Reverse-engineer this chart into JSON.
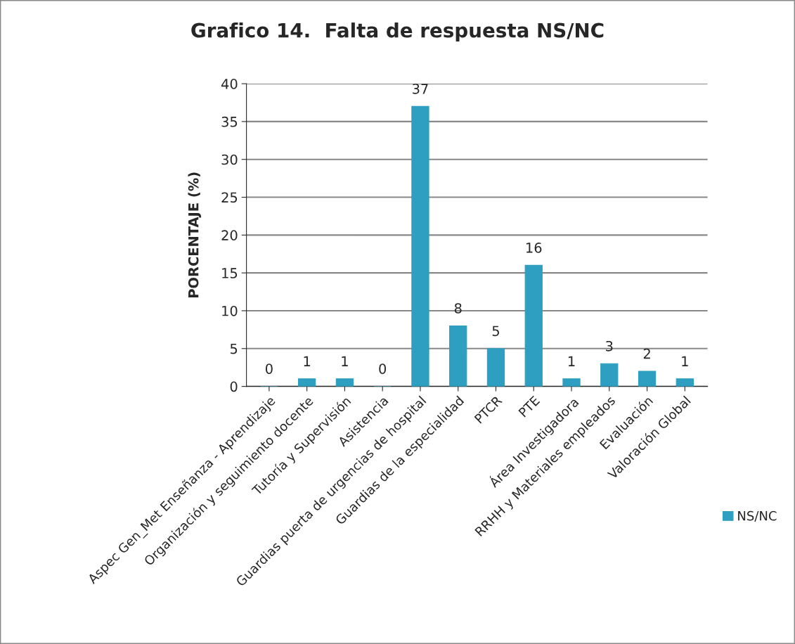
{
  "chart_data": {
    "type": "bar",
    "title": "Grafico 14.  Falta de respuesta NS/NC",
    "ylabel": "PORCENTAJE (%)",
    "categories": [
      "Aspec Gen_Met Enseñanza - Aprendizaje",
      "Organización y seguimiento docente",
      "Tutoría y Supervisión",
      "Asistencia",
      "Guardias puerta de urgencias de hospital",
      "Guardias de la especialidad",
      "PTCR",
      "PTE",
      "Área Investigadora",
      "RRHH y Materiales empleados",
      "Evaluación",
      "Valoración Global"
    ],
    "series": [
      {
        "name": "NS/NC",
        "color": "#2e9fc0",
        "values": [
          0,
          1,
          1,
          0,
          37,
          8,
          5,
          16,
          1,
          3,
          2,
          1
        ]
      }
    ],
    "ylim": [
      0,
      40
    ],
    "yticks": [
      0,
      5,
      10,
      15,
      20,
      25,
      30,
      35,
      40
    ],
    "grid": "y",
    "legend": "bottom right",
    "data_labels": true
  }
}
